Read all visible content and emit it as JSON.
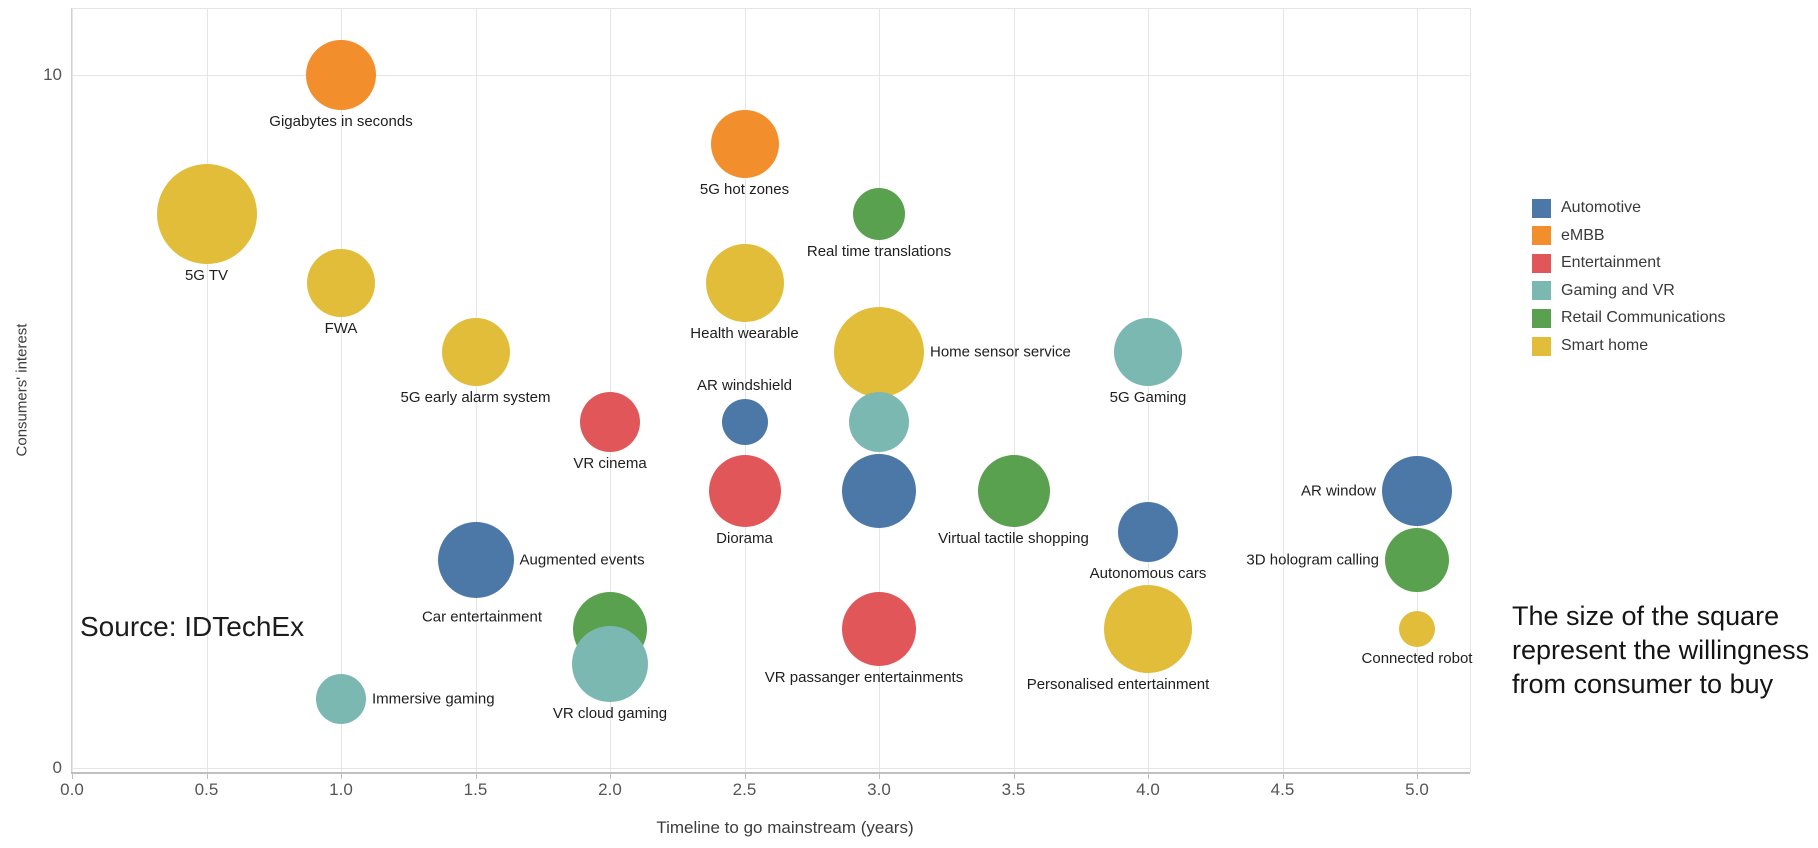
{
  "source_note": "Source: IDTechEx",
  "size_note": {
    "lines": [
      "The size of the square",
      "represent the willingness",
      "from consumer to buy"
    ]
  },
  "legend": [
    {
      "label": "Automotive",
      "color": "#4c78a8"
    },
    {
      "label": "eMBB",
      "color": "#f28e2b"
    },
    {
      "label": "Entertainment",
      "color": "#e15759"
    },
    {
      "label": "Gaming and VR",
      "color": "#7cb8b2"
    },
    {
      "label": "Retail Communications",
      "color": "#59a14f"
    },
    {
      "label": "Smart home",
      "color": "#e2bd3a"
    }
  ],
  "chart_data": {
    "type": "scatter",
    "subtype": "bubble",
    "title": "",
    "xlabel": "Timeline to go mainstream (years)",
    "ylabel": "Consumers' interest",
    "xlim": [
      0,
      5.25
    ],
    "ylim": [
      0,
      11.0
    ],
    "grid": "vertical-major-plus-y-endpoints",
    "legend_position": "right",
    "size_encodes": "willingness from consumer to buy",
    "x_tick_values": [
      0,
      0.5,
      1,
      1.5,
      2,
      2.5,
      3,
      3.5,
      4,
      4.5,
      5
    ],
    "x_tick_labels": [
      "0.0",
      "0.5",
      "1.0",
      "1.5",
      "2.0",
      "2.5",
      "3.0",
      "3.5",
      "4.0",
      "4.5",
      "5.0"
    ],
    "y_ticks": [
      {
        "value": 10,
        "label": "10"
      },
      {
        "value": 0,
        "label": "0"
      }
    ],
    "categories": {
      "Automotive": "#4c78a8",
      "eMBB": "#f28e2b",
      "Entertainment": "#e15759",
      "Gaming and VR": "#7cb8b2",
      "Retail Communications": "#59a14f",
      "Smart home": "#e2bd3a"
    },
    "points": [
      {
        "label": "Gigabytes in seconds",
        "category": "eMBB",
        "x": 1.0,
        "y": 10,
        "r": 35,
        "label_pos": "below"
      },
      {
        "label": "5G hot zones",
        "category": "eMBB",
        "x": 2.5,
        "y": 9,
        "r": 34,
        "label_pos": "below"
      },
      {
        "label": "5G TV",
        "category": "Smart home",
        "x": 0.5,
        "y": 8,
        "r": 50,
        "label_pos": "below"
      },
      {
        "label": "Real time translations",
        "category": "Retail Communications",
        "x": 3.0,
        "y": 8,
        "r": 26,
        "label_pos": "below"
      },
      {
        "label": "FWA",
        "category": "Smart home",
        "x": 1.0,
        "y": 7,
        "r": 34,
        "label_pos": "below"
      },
      {
        "label": "Health wearable",
        "category": "Smart home",
        "x": 2.5,
        "y": 7,
        "r": 39,
        "label_pos": "below"
      },
      {
        "label": "5G early alarm system",
        "category": "Smart home",
        "x": 1.5,
        "y": 6,
        "r": 34,
        "label_pos": "below"
      },
      {
        "label": "Home sensor service",
        "category": "Smart home",
        "x": 3.0,
        "y": 6,
        "r": 45,
        "label_pos": "right"
      },
      {
        "label": "5G Gaming",
        "category": "Gaming and VR",
        "x": 4.0,
        "y": 6,
        "r": 34,
        "label_pos": "below"
      },
      {
        "label": "VR cinema",
        "category": "Entertainment",
        "x": 2.0,
        "y": 5,
        "r": 30,
        "label_pos": "below"
      },
      {
        "label": "AR windshield",
        "category": "Automotive",
        "x": 2.5,
        "y": 5,
        "r": 23,
        "label_pos": "above"
      },
      {
        "label": "",
        "category": "Gaming and VR",
        "x": 3.0,
        "y": 5,
        "r": 30,
        "label_pos": "none"
      },
      {
        "label": "Diorama",
        "category": "Entertainment",
        "x": 2.5,
        "y": 4,
        "r": 36,
        "label_pos": "below"
      },
      {
        "label": "",
        "category": "Automotive",
        "x": 3.0,
        "y": 4,
        "r": 37,
        "label_pos": "none"
      },
      {
        "label": "Virtual tactile shopping",
        "category": "Retail Communications",
        "x": 3.5,
        "y": 4,
        "r": 36,
        "label_pos": "below"
      },
      {
        "label": "AR window",
        "category": "Automotive",
        "x": 5.0,
        "y": 4,
        "r": 35,
        "label_pos": "left"
      },
      {
        "label": "Augmented events",
        "category": "Automotive",
        "x": 1.5,
        "y": 3,
        "r": 38,
        "label_pos": "right"
      },
      {
        "label": "Autonomous cars",
        "category": "Automotive",
        "x": 4.0,
        "y": 3.4,
        "r": 30,
        "label_pos": "below"
      },
      {
        "label": "3D hologram calling",
        "category": "Retail Communications",
        "x": 5.0,
        "y": 3,
        "r": 32,
        "label_pos": "left"
      },
      {
        "label": "Car entertainment",
        "category": "Retail Communications",
        "x": 2.0,
        "y": 2,
        "r": 37,
        "label_pos": "left",
        "label_nudge": [
          -25,
          -12
        ]
      },
      {
        "label": "VR passanger entertainments",
        "category": "Entertainment",
        "x": 3.0,
        "y": 2,
        "r": 37,
        "label_pos": "below",
        "label_nudge": [
          -15,
          0
        ]
      },
      {
        "label": "Personalised entertainment",
        "category": "Smart home",
        "x": 4.0,
        "y": 2,
        "r": 44,
        "label_pos": "below",
        "label_nudge": [
          -30,
          0
        ]
      },
      {
        "label": "Connected robot",
        "category": "Smart home",
        "x": 5.0,
        "y": 2,
        "r": 18,
        "label_pos": "below"
      },
      {
        "label": "VR cloud gaming",
        "category": "Gaming and VR",
        "x": 2.0,
        "y": 1.5,
        "r": 38,
        "label_pos": "below"
      },
      {
        "label": "Immersive gaming",
        "category": "Gaming and VR",
        "x": 1.0,
        "y": 1,
        "r": 25,
        "label_pos": "right"
      }
    ]
  }
}
